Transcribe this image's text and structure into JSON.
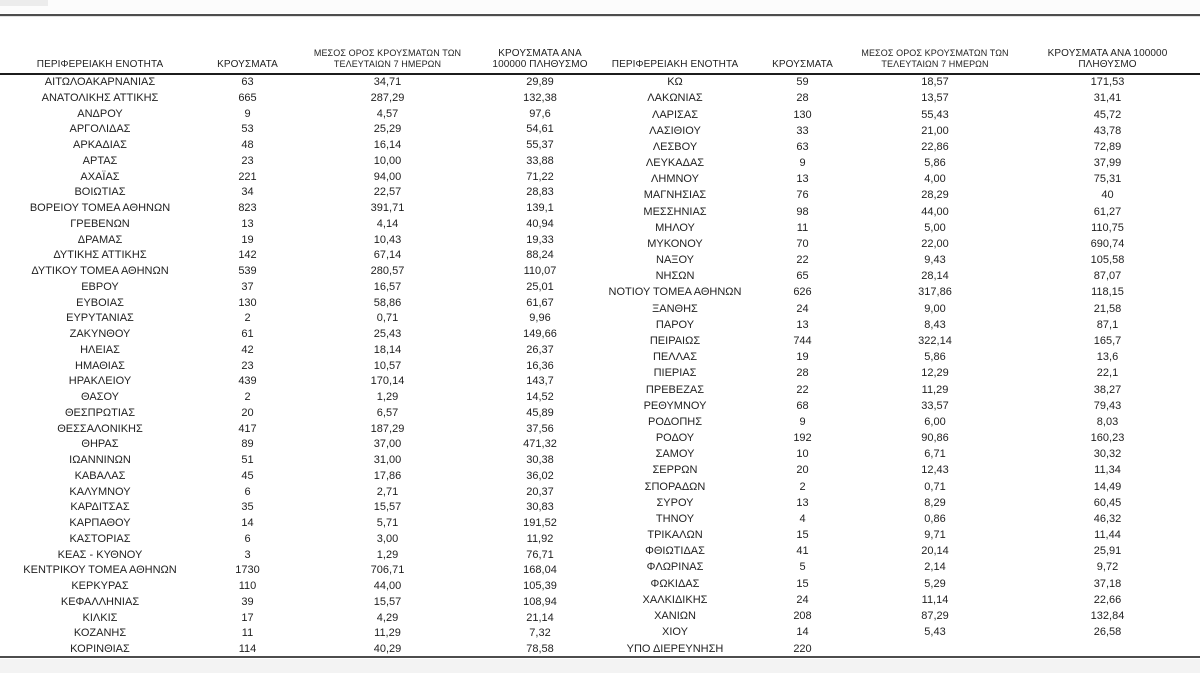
{
  "page": {
    "text_color": "#1f1f1f",
    "rule_color": "#4d4d4d",
    "bottom_band_color": "#f3f3f3",
    "decimal_separator": ","
  },
  "columns": [
    "ΠΕΡΙΦΕΡΕΙΑΚΗ ΕΝΟΤΗΤΑ",
    "ΚΡΟΥΣΜΑΤΑ",
    "ΜΕΣΟΣ ΟΡΟΣ ΚΡΟΥΣΜΑΤΩΝ ΤΩΝ ΤΕΛΕΥΤΑΙΩΝ 7 ΗΜΕΡΩΝ",
    "ΚΡΟΥΣΜΑΤΑ ΑΝΑ 100000 ΠΛΗΘΥΣΜΟ"
  ],
  "left_table": {
    "rows": [
      [
        "ΑΙΤΩΛΟΑΚΑΡΝΑΝΙΑΣ",
        "63",
        "34,71",
        "29,89"
      ],
      [
        "ΑΝΑΤΟΛΙΚΗΣ ΑΤΤΙΚΗΣ",
        "665",
        "287,29",
        "132,38"
      ],
      [
        "ΑΝΔΡΟΥ",
        "9",
        "4,57",
        "97,6"
      ],
      [
        "ΑΡΓΟΛΙΔΑΣ",
        "53",
        "25,29",
        "54,61"
      ],
      [
        "ΑΡΚΑΔΙΑΣ",
        "48",
        "16,14",
        "55,37"
      ],
      [
        "ΑΡΤΑΣ",
        "23",
        "10,00",
        "33,88"
      ],
      [
        "ΑΧΑΪΑΣ",
        "221",
        "94,00",
        "71,22"
      ],
      [
        "ΒΟΙΩΤΙΑΣ",
        "34",
        "22,57",
        "28,83"
      ],
      [
        "ΒΟΡΕΙΟΥ ΤΟΜΕΑ ΑΘΗΝΩΝ",
        "823",
        "391,71",
        "139,1"
      ],
      [
        "ΓΡΕΒΕΝΩΝ",
        "13",
        "4,14",
        "40,94"
      ],
      [
        "ΔΡΑΜΑΣ",
        "19",
        "10,43",
        "19,33"
      ],
      [
        "ΔΥΤΙΚΗΣ ΑΤΤΙΚΗΣ",
        "142",
        "67,14",
        "88,24"
      ],
      [
        "ΔΥΤΙΚΟΥ ΤΟΜΕΑ ΑΘΗΝΩΝ",
        "539",
        "280,57",
        "110,07"
      ],
      [
        "ΕΒΡΟΥ",
        "37",
        "16,57",
        "25,01"
      ],
      [
        "ΕΥΒΟΙΑΣ",
        "130",
        "58,86",
        "61,67"
      ],
      [
        "ΕΥΡΥΤΑΝΙΑΣ",
        "2",
        "0,71",
        "9,96"
      ],
      [
        "ΖΑΚΥΝΘΟΥ",
        "61",
        "25,43",
        "149,66"
      ],
      [
        "ΗΛΕΙΑΣ",
        "42",
        "18,14",
        "26,37"
      ],
      [
        "ΗΜΑΘΙΑΣ",
        "23",
        "10,57",
        "16,36"
      ],
      [
        "ΗΡΑΚΛΕΙΟΥ",
        "439",
        "170,14",
        "143,7"
      ],
      [
        "ΘΑΣΟΥ",
        "2",
        "1,29",
        "14,52"
      ],
      [
        "ΘΕΣΠΡΩΤΙΑΣ",
        "20",
        "6,57",
        "45,89"
      ],
      [
        "ΘΕΣΣΑΛΟΝΙΚΗΣ",
        "417",
        "187,29",
        "37,56"
      ],
      [
        "ΘΗΡΑΣ",
        "89",
        "37,00",
        "471,32"
      ],
      [
        "ΙΩΑΝΝΙΝΩΝ",
        "51",
        "31,00",
        "30,38"
      ],
      [
        "ΚΑΒΑΛΑΣ",
        "45",
        "17,86",
        "36,02"
      ],
      [
        "ΚΑΛΥΜΝΟΥ",
        "6",
        "2,71",
        "20,37"
      ],
      [
        "ΚΑΡΔΙΤΣΑΣ",
        "35",
        "15,57",
        "30,83"
      ],
      [
        "ΚΑΡΠΑΘΟΥ",
        "14",
        "5,71",
        "191,52"
      ],
      [
        "ΚΑΣΤΟΡΙΑΣ",
        "6",
        "3,00",
        "11,92"
      ],
      [
        "ΚΕΑΣ - ΚΥΘΝΟΥ",
        "3",
        "1,29",
        "76,71"
      ],
      [
        "ΚΕΝΤΡΙΚΟΥ ΤΟΜΕΑ ΑΘΗΝΩΝ",
        "1730",
        "706,71",
        "168,04"
      ],
      [
        "ΚΕΡΚΥΡΑΣ",
        "110",
        "44,00",
        "105,39"
      ],
      [
        "ΚΕΦΑΛΛΗΝΙΑΣ",
        "39",
        "15,57",
        "108,94"
      ],
      [
        "ΚΙΛΚΙΣ",
        "17",
        "4,29",
        "21,14"
      ],
      [
        "ΚΟΖΑΝΗΣ",
        "11",
        "11,29",
        "7,32"
      ],
      [
        "ΚΟΡΙΝΘΙΑΣ",
        "114",
        "40,29",
        "78,58"
      ]
    ]
  },
  "right_table": {
    "rows": [
      [
        "ΚΩ",
        "59",
        "18,57",
        "171,53"
      ],
      [
        "ΛΑΚΩΝΙΑΣ",
        "28",
        "13,57",
        "31,41"
      ],
      [
        "ΛΑΡΙΣΑΣ",
        "130",
        "55,43",
        "45,72"
      ],
      [
        "ΛΑΣΙΘΙΟΥ",
        "33",
        "21,00",
        "43,78"
      ],
      [
        "ΛΕΣΒΟΥ",
        "63",
        "22,86",
        "72,89"
      ],
      [
        "ΛΕΥΚΑΔΑΣ",
        "9",
        "5,86",
        "37,99"
      ],
      [
        "ΛΗΜΝΟΥ",
        "13",
        "4,00",
        "75,31"
      ],
      [
        "ΜΑΓΝΗΣΙΑΣ",
        "76",
        "28,29",
        "40"
      ],
      [
        "ΜΕΣΣΗΝΙΑΣ",
        "98",
        "44,00",
        "61,27"
      ],
      [
        "ΜΗΛΟΥ",
        "11",
        "5,00",
        "110,75"
      ],
      [
        "ΜΥΚΟΝΟΥ",
        "70",
        "22,00",
        "690,74"
      ],
      [
        "ΝΑΞΟΥ",
        "22",
        "9,43",
        "105,58"
      ],
      [
        "ΝΗΣΩΝ",
        "65",
        "28,14",
        "87,07"
      ],
      [
        "ΝΟΤΙΟΥ ΤΟΜΕΑ ΑΘΗΝΩΝ",
        "626",
        "317,86",
        "118,15"
      ],
      [
        "ΞΑΝΘΗΣ",
        "24",
        "9,00",
        "21,58"
      ],
      [
        "ΠΑΡΟΥ",
        "13",
        "8,43",
        "87,1"
      ],
      [
        "ΠΕΙΡΑΙΩΣ",
        "744",
        "322,14",
        "165,7"
      ],
      [
        "ΠΕΛΛΑΣ",
        "19",
        "5,86",
        "13,6"
      ],
      [
        "ΠΙΕΡΙΑΣ",
        "28",
        "12,29",
        "22,1"
      ],
      [
        "ΠΡΕΒΕΖΑΣ",
        "22",
        "11,29",
        "38,27"
      ],
      [
        "ΡΕΘΥΜΝΟΥ",
        "68",
        "33,57",
        "79,43"
      ],
      [
        "ΡΟΔΟΠΗΣ",
        "9",
        "6,00",
        "8,03"
      ],
      [
        "ΡΟΔΟΥ",
        "192",
        "90,86",
        "160,23"
      ],
      [
        "ΣΑΜΟΥ",
        "10",
        "6,71",
        "30,32"
      ],
      [
        "ΣΕΡΡΩΝ",
        "20",
        "12,43",
        "11,34"
      ],
      [
        "ΣΠΟΡΑΔΩΝ",
        "2",
        "0,71",
        "14,49"
      ],
      [
        "ΣΥΡΟΥ",
        "13",
        "8,29",
        "60,45"
      ],
      [
        "ΤΗΝΟΥ",
        "4",
        "0,86",
        "46,32"
      ],
      [
        "ΤΡΙΚΑΛΩΝ",
        "15",
        "9,71",
        "11,44"
      ],
      [
        "ΦΘΙΩΤΙΔΑΣ",
        "41",
        "20,14",
        "25,91"
      ],
      [
        "ΦΛΩΡΙΝΑΣ",
        "5",
        "2,14",
        "9,72"
      ],
      [
        "ΦΩΚΙΔΑΣ",
        "15",
        "5,29",
        "37,18"
      ],
      [
        "ΧΑΛΚΙΔΙΚΗΣ",
        "24",
        "11,14",
        "22,66"
      ],
      [
        "ΧΑΝΙΩΝ",
        "208",
        "87,29",
        "132,84"
      ],
      [
        "ΧΙΟΥ",
        "14",
        "5,43",
        "26,58"
      ],
      [
        "ΥΠΟ ΔΙΕΡΕΥΝΗΣΗ",
        "220",
        "",
        ""
      ]
    ]
  }
}
